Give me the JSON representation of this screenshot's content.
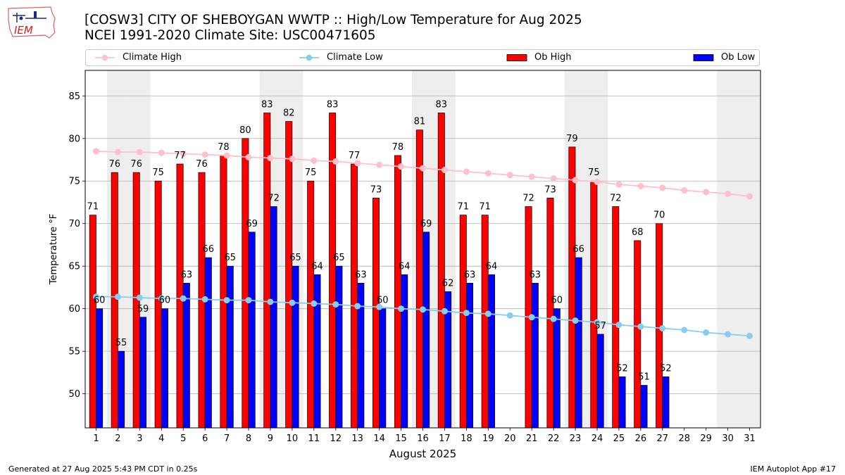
{
  "logo": {
    "text": "IEM"
  },
  "header": {
    "title_line1": "[COSW3] CITY OF SHEBOYGAN WWTP :: High/Low Temperature for Aug 2025",
    "title_line2": "NCEI 1991-2020 Climate Site: USC00471605"
  },
  "legend": {
    "climate_high": "Climate High",
    "climate_low": "Climate Low",
    "ob_high": "Ob High",
    "ob_low": "Ob Low"
  },
  "footer": {
    "generated": "Generated at 27 Aug 2025 5:43 PM CDT in 0.25s",
    "app": "IEM Autoplot App #17"
  },
  "colors": {
    "ob_high": "#ff0000",
    "ob_low": "#0000ff",
    "climate_high": "#ffc0cb",
    "climate_low": "#87ceeb",
    "weekend_shade": "#eeeeee",
    "grid": "#b0b0b0"
  },
  "chart_data": {
    "type": "bar",
    "xlabel": "August 2025",
    "ylabel": "Temperature °F",
    "ylim": [
      46,
      88
    ],
    "yticks": [
      50,
      55,
      60,
      65,
      70,
      75,
      80,
      85
    ],
    "grid": "horizontal",
    "legend_position": "top",
    "days": [
      1,
      2,
      3,
      4,
      5,
      6,
      7,
      8,
      9,
      10,
      11,
      12,
      13,
      14,
      15,
      16,
      17,
      18,
      19,
      20,
      21,
      22,
      23,
      24,
      25,
      26,
      27,
      28,
      29,
      30,
      31
    ],
    "weekend_days": [
      2,
      3,
      9,
      10,
      16,
      17,
      23,
      24,
      30,
      31
    ],
    "series": [
      {
        "name": "Ob High",
        "kind": "bar",
        "values": [
          71,
          76,
          76,
          75,
          77,
          76,
          78,
          80,
          83,
          82,
          75,
          83,
          77,
          73,
          78,
          81,
          83,
          71,
          71,
          null,
          72,
          73,
          79,
          75,
          72,
          68,
          70,
          null,
          null,
          null,
          null
        ]
      },
      {
        "name": "Ob Low",
        "kind": "bar",
        "values": [
          60,
          55,
          59,
          60,
          63,
          66,
          65,
          69,
          72,
          65,
          64,
          65,
          63,
          60,
          64,
          69,
          62,
          63,
          64,
          null,
          63,
          60,
          66,
          57,
          52,
          51,
          52,
          null,
          null,
          null,
          null
        ]
      },
      {
        "name": "Climate High",
        "kind": "line",
        "values": [
          78.5,
          78.4,
          78.4,
          78.3,
          78.2,
          78.1,
          78.0,
          77.8,
          77.7,
          77.6,
          77.4,
          77.3,
          77.1,
          76.9,
          76.7,
          76.5,
          76.3,
          76.1,
          75.9,
          75.7,
          75.5,
          75.3,
          75.1,
          74.9,
          74.6,
          74.4,
          74.2,
          73.9,
          73.7,
          73.5,
          73.2
        ]
      },
      {
        "name": "Climate Low",
        "kind": "line",
        "values": [
          61.4,
          61.4,
          61.3,
          61.2,
          61.2,
          61.1,
          61.0,
          61.0,
          60.8,
          60.7,
          60.6,
          60.5,
          60.3,
          60.2,
          60.0,
          59.9,
          59.7,
          59.5,
          59.4,
          59.2,
          59.0,
          58.8,
          58.6,
          58.4,
          58.1,
          57.9,
          57.7,
          57.5,
          57.2,
          57.0,
          56.8
        ]
      }
    ]
  }
}
